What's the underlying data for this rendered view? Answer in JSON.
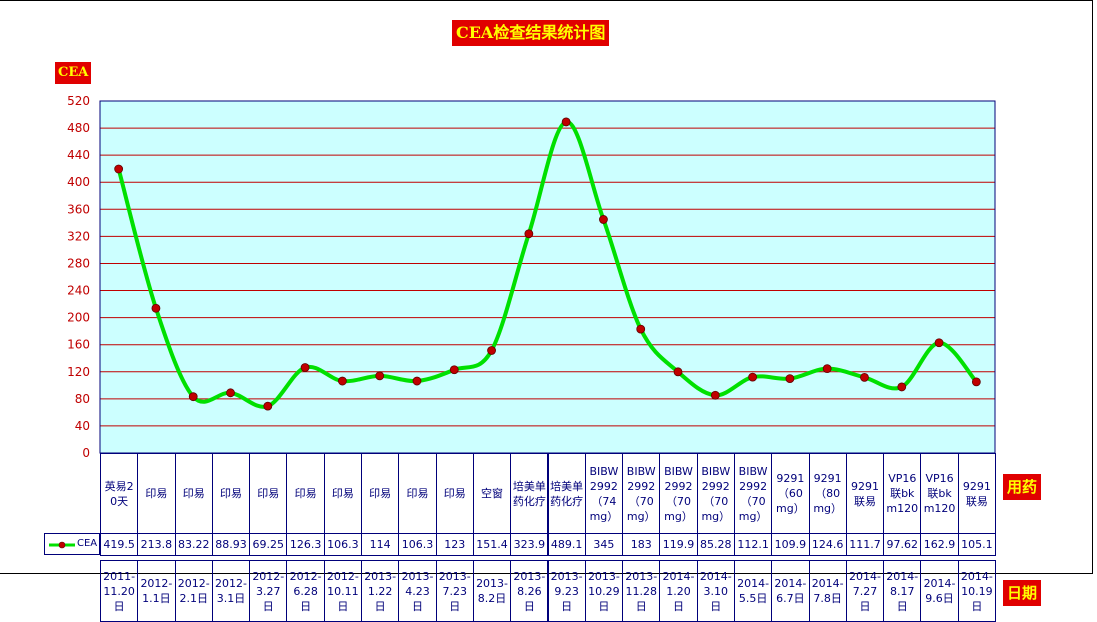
{
  "chart_data": {
    "type": "line",
    "title": "CEA检查结果统计图",
    "ylabel": "CEA",
    "ylim": [
      0,
      520
    ],
    "yticks": [
      0,
      40,
      80,
      120,
      160,
      200,
      240,
      280,
      320,
      360,
      400,
      440,
      480,
      520
    ],
    "grid": true,
    "smooth": true,
    "series": [
      {
        "name": "CEA",
        "color": "#00e000",
        "marker_color": "#c00000",
        "values": [
          419.5,
          213.8,
          83.22,
          88.93,
          69.25,
          126.3,
          106.3,
          114,
          106.3,
          123,
          151.4,
          323.9,
          489.1,
          345,
          183,
          119.9,
          85.28,
          112.1,
          109.9,
          124.6,
          111.7,
          97.62,
          162.9,
          105.1
        ],
        "value_labels": [
          "419.5",
          "213.8",
          "83.22",
          "88.93",
          "69.25",
          "126.3",
          "106.3",
          "114",
          "106.3",
          "123",
          "151.4",
          "323.9",
          "489.1",
          "345",
          "183",
          "119.9",
          "85.28",
          "112.1",
          "109.9",
          "124.6",
          "111.7",
          "97.62",
          "162.9",
          "105.1"
        ]
      }
    ],
    "drugs_label": "用药",
    "drugs": [
      "英易20天",
      "印易",
      "印易",
      "印易",
      "印易",
      "印易",
      "印易",
      "印易",
      "印易",
      "印易",
      "空窗",
      "培美单药化疗",
      "培美单药化疗",
      "BIBW2992（74mg）",
      "BIBW2992（70mg）",
      "BIBW2992（70mg）",
      "BIBW2992（70mg）",
      "BIBW2992（70mg）",
      "9291（60mg）",
      "9291（80mg）",
      "9291联易",
      "VP16联bkm120",
      "VP16联bkm120",
      "9291联易"
    ],
    "dates_label": "日期",
    "dates": [
      "2011-11.20日",
      "2012-1.1日",
      "2012-2.1日",
      "2012-3.1日",
      "2012-3.27日",
      "2012-6.28日",
      "2012-10.11日",
      "2013-1.22日",
      "2013-4.23日",
      "2013-7.23日",
      "2013-8.2日",
      "2013-8.26日",
      "2013-9.23日",
      "2013-10.29日",
      "2013-11.28日",
      "2014-1.20日",
      "2014-3.10日",
      "2014-5.5日",
      "2014-6.7日",
      "2014-7.8日",
      "2014-7.27日",
      "2014-8.17日",
      "2014-9.6日",
      "2014-10.19日"
    ],
    "colors": {
      "plot_bg": "#ccffff",
      "grid": "#c00000",
      "axis_text": "#c00000",
      "table_border": "#00007a",
      "label_bg": "#e00000",
      "label_text": "#ffff00"
    }
  }
}
